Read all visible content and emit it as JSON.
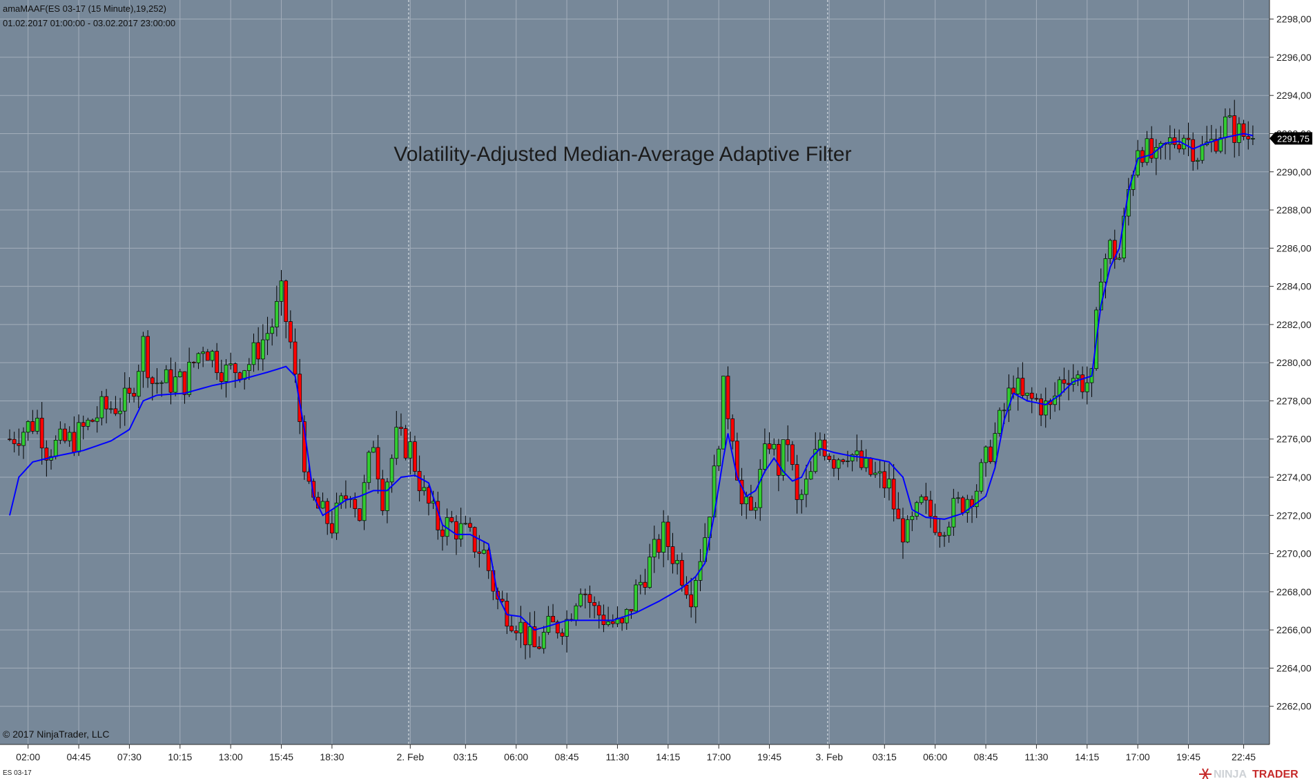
{
  "header": {
    "indicator": "amaMAAF(ES 03-17 (15 Minute),19,252)",
    "range": "01.02.2017 01:00:00 - 03.02.2017 23:00:00"
  },
  "footer": {
    "copyright": "© 2017 NinjaTrader, LLC",
    "instrument": "ES 03-17",
    "brand_left": "NINJA",
    "brand_right": "TRADER"
  },
  "colors": {
    "background": "#778899",
    "up": "#32cd32",
    "down": "#ff0000",
    "filter": "#0000ff",
    "wick": "#000000"
  },
  "chart_data": {
    "type": "candlestick",
    "title": "Volatility-Adjusted Median-Average Adaptive Filter",
    "xlabel": "",
    "ylabel": "",
    "ylim": [
      2260,
      2299
    ],
    "yticks": [
      2262,
      2264,
      2266,
      2268,
      2270,
      2272,
      2274,
      2276,
      2278,
      2280,
      2282,
      2284,
      2286,
      2288,
      2290,
      2292,
      2294,
      2296,
      2298
    ],
    "ytick_labels": [
      "2262,00",
      "2264,00",
      "2266,00",
      "2268,00",
      "2270,00",
      "2272,00",
      "2274,00",
      "2276,00",
      "2278,00",
      "2280,00",
      "2282,00",
      "2284,00",
      "2286,00",
      "2288,00",
      "2290,00",
      "2292,00",
      "2294,00",
      "2296,00",
      "2298,00"
    ],
    "xticks": [
      {
        "label": "02:00",
        "bar": 4
      },
      {
        "label": "04:45",
        "bar": 15
      },
      {
        "label": "07:30",
        "bar": 26
      },
      {
        "label": "10:15",
        "bar": 37
      },
      {
        "label": "13:00",
        "bar": 48
      },
      {
        "label": "15:45",
        "bar": 59
      },
      {
        "label": "18:30",
        "bar": 70
      },
      {
        "label": "2. Feb",
        "bar": 87
      },
      {
        "label": "03:15",
        "bar": 99
      },
      {
        "label": "06:00",
        "bar": 110
      },
      {
        "label": "08:45",
        "bar": 121
      },
      {
        "label": "11:30",
        "bar": 132
      },
      {
        "label": "14:15",
        "bar": 143
      },
      {
        "label": "17:00",
        "bar": 154
      },
      {
        "label": "19:45",
        "bar": 165
      },
      {
        "label": "3. Feb",
        "bar": 178
      },
      {
        "label": "03:15",
        "bar": 190
      },
      {
        "label": "06:00",
        "bar": 201
      },
      {
        "label": "08:45",
        "bar": 212
      },
      {
        "label": "11:30",
        "bar": 223
      },
      {
        "label": "14:15",
        "bar": 234
      },
      {
        "label": "17:00",
        "bar": 245
      },
      {
        "label": "19:45",
        "bar": 256
      },
      {
        "label": "22:45",
        "bar": 268
      }
    ],
    "day_separators": [
      86,
      177
    ],
    "last_price": "2291,75",
    "price_anchors": [
      [
        0,
        2276.0
      ],
      [
        6,
        2277.0
      ],
      [
        8,
        2275.5
      ],
      [
        14,
        2276.0
      ],
      [
        20,
        2277.5
      ],
      [
        26,
        2278.0
      ],
      [
        29,
        2281.0
      ],
      [
        31,
        2279.0
      ],
      [
        38,
        2279.0
      ],
      [
        42,
        2281.0
      ],
      [
        47,
        2279.5
      ],
      [
        52,
        2280.0
      ],
      [
        57,
        2282.0
      ],
      [
        59,
        2283.5
      ],
      [
        61,
        2281.0
      ],
      [
        63,
        2277.0
      ],
      [
        65,
        2273.0
      ],
      [
        68,
        2272.0
      ],
      [
        70,
        2271.5
      ],
      [
        74,
        2273.5
      ],
      [
        76,
        2272.0
      ],
      [
        79,
        2276.0
      ],
      [
        81,
        2273.0
      ],
      [
        84,
        2276.0
      ],
      [
        87,
        2275.5
      ],
      [
        90,
        2273.0
      ],
      [
        93,
        2271.5
      ],
      [
        96,
        2271.5
      ],
      [
        99,
        2271.0
      ],
      [
        103,
        2270.0
      ],
      [
        106,
        2267.5
      ],
      [
        110,
        2266.5
      ],
      [
        114,
        2265.0
      ],
      [
        117,
        2266.0
      ],
      [
        121,
        2266.5
      ],
      [
        124,
        2268.5
      ],
      [
        127,
        2267.0
      ],
      [
        130,
        2266.5
      ],
      [
        133,
        2266.0
      ],
      [
        136,
        2268.0
      ],
      [
        139,
        2269.5
      ],
      [
        142,
        2271.0
      ],
      [
        145,
        2269.5
      ],
      [
        148,
        2268.0
      ],
      [
        151,
        2271.0
      ],
      [
        153,
        2274.0
      ],
      [
        155,
        2278.5
      ],
      [
        157,
        2276.5
      ],
      [
        159,
        2272.5
      ],
      [
        161,
        2272.0
      ],
      [
        163,
        2274.0
      ],
      [
        165,
        2276.0
      ],
      [
        167,
        2274.5
      ],
      [
        169,
        2276.0
      ],
      [
        171,
        2272.5
      ],
      [
        174,
        2274.0
      ],
      [
        176,
        2276.0
      ],
      [
        179,
        2275.0
      ],
      [
        182,
        2275.5
      ],
      [
        185,
        2274.5
      ],
      [
        188,
        2274.0
      ],
      [
        191,
        2273.5
      ],
      [
        193,
        2271.5
      ],
      [
        195,
        2271.0
      ],
      [
        198,
        2272.5
      ],
      [
        202,
        2271.5
      ],
      [
        206,
        2272.5
      ],
      [
        210,
        2273.5
      ],
      [
        213,
        2275.5
      ],
      [
        216,
        2277.5
      ],
      [
        218,
        2279.0
      ],
      [
        220,
        2278.0
      ],
      [
        223,
        2278.0
      ],
      [
        226,
        2277.5
      ],
      [
        228,
        2279.0
      ],
      [
        230,
        2279.5
      ],
      [
        233,
        2279.0
      ],
      [
        235,
        2279.0
      ],
      [
        237,
        2285.0
      ],
      [
        239,
        2286.0
      ],
      [
        241,
        2285.5
      ],
      [
        243,
        2289.0
      ],
      [
        245,
        2291.5
      ],
      [
        247,
        2291.0
      ],
      [
        249,
        2290.5
      ],
      [
        252,
        2291.5
      ],
      [
        255,
        2292.0
      ],
      [
        258,
        2291.0
      ],
      [
        261,
        2291.5
      ],
      [
        264,
        2292.5
      ],
      [
        267,
        2292.0
      ],
      [
        270,
        2291.75
      ]
    ],
    "filter_anchors": [
      [
        0,
        2272.0
      ],
      [
        2,
        2274.0
      ],
      [
        5,
        2274.8
      ],
      [
        10,
        2275.1
      ],
      [
        16,
        2275.4
      ],
      [
        22,
        2275.9
      ],
      [
        26,
        2276.5
      ],
      [
        29,
        2278.0
      ],
      [
        32,
        2278.3
      ],
      [
        38,
        2278.4
      ],
      [
        44,
        2278.8
      ],
      [
        50,
        2279.1
      ],
      [
        56,
        2279.5
      ],
      [
        60,
        2279.8
      ],
      [
        62,
        2279.3
      ],
      [
        64,
        2276.5
      ],
      [
        66,
        2273.0
      ],
      [
        68,
        2272.0
      ],
      [
        70,
        2272.3
      ],
      [
        73,
        2272.8
      ],
      [
        76,
        2273.0
      ],
      [
        79,
        2273.3
      ],
      [
        82,
        2273.3
      ],
      [
        85,
        2274.0
      ],
      [
        88,
        2274.1
      ],
      [
        91,
        2273.7
      ],
      [
        94,
        2271.5
      ],
      [
        97,
        2271.0
      ],
      [
        100,
        2271.0
      ],
      [
        104,
        2270.5
      ],
      [
        106,
        2267.8
      ],
      [
        108,
        2266.8
      ],
      [
        111,
        2266.7
      ],
      [
        114,
        2266.0
      ],
      [
        117,
        2266.2
      ],
      [
        121,
        2266.5
      ],
      [
        126,
        2266.5
      ],
      [
        131,
        2266.5
      ],
      [
        136,
        2266.9
      ],
      [
        141,
        2267.5
      ],
      [
        146,
        2268.2
      ],
      [
        149,
        2268.8
      ],
      [
        151,
        2269.5
      ],
      [
        153,
        2272.0
      ],
      [
        155,
        2275.0
      ],
      [
        156,
        2276.3
      ],
      [
        158,
        2274.0
      ],
      [
        160,
        2273.0
      ],
      [
        162,
        2273.3
      ],
      [
        164,
        2274.3
      ],
      [
        166,
        2275.0
      ],
      [
        168,
        2274.3
      ],
      [
        170,
        2273.8
      ],
      [
        172,
        2274.0
      ],
      [
        174,
        2275.0
      ],
      [
        176,
        2275.5
      ],
      [
        179,
        2275.3
      ],
      [
        183,
        2275.1
      ],
      [
        187,
        2275.0
      ],
      [
        191,
        2274.8
      ],
      [
        194,
        2274.0
      ],
      [
        196,
        2272.3
      ],
      [
        199,
        2271.9
      ],
      [
        203,
        2271.8
      ],
      [
        207,
        2272.1
      ],
      [
        212,
        2273.0
      ],
      [
        214,
        2274.5
      ],
      [
        216,
        2277.0
      ],
      [
        218,
        2278.4
      ],
      [
        221,
        2278.0
      ],
      [
        225,
        2277.8
      ],
      [
        228,
        2278.3
      ],
      [
        231,
        2279.0
      ],
      [
        235,
        2279.3
      ],
      [
        237,
        2283.0
      ],
      [
        239,
        2285.0
      ],
      [
        241,
        2286.0
      ],
      [
        243,
        2289.0
      ],
      [
        245,
        2290.7
      ],
      [
        248,
        2290.9
      ],
      [
        251,
        2291.5
      ],
      [
        254,
        2291.6
      ],
      [
        257,
        2291.2
      ],
      [
        260,
        2291.5
      ],
      [
        264,
        2291.8
      ],
      [
        268,
        2292.0
      ],
      [
        270,
        2291.9
      ]
    ]
  }
}
